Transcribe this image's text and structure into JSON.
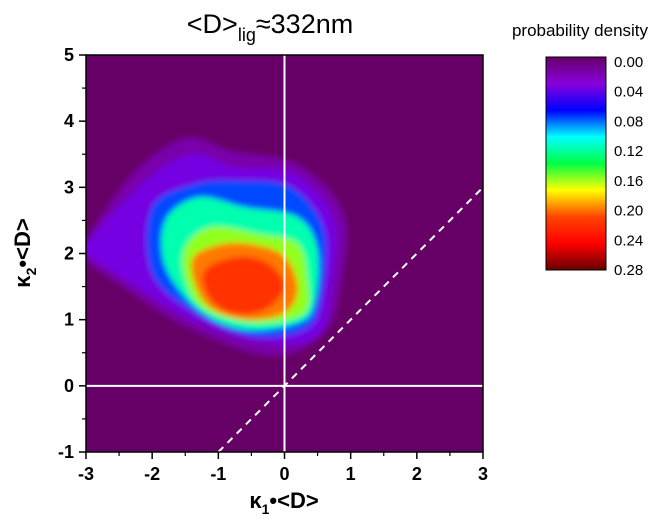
{
  "chart_data": {
    "type": "heatmap",
    "title": {
      "main": "<D>",
      "sub": "lig",
      "rest": "≈332nm"
    },
    "xlabel": {
      "main": "κ",
      "sub": "1",
      "rest": "•<D>"
    },
    "ylabel": {
      "main": "κ",
      "sub": "2",
      "rest": "•<D>"
    },
    "xlim": [
      -3,
      3
    ],
    "ylim": [
      -1,
      5
    ],
    "xticks": [
      "-3",
      "-2",
      "-1",
      "0",
      "1",
      "2",
      "3"
    ],
    "yticks": [
      "-1",
      "0",
      "1",
      "2",
      "3",
      "4",
      "5"
    ],
    "colorbar": {
      "title": "probability density",
      "range": [
        0.0,
        0.28
      ],
      "ticks": [
        "0.00",
        "0.04",
        "0.08",
        "0.12",
        "0.16",
        "0.20",
        "0.24",
        "0.28"
      ],
      "colors": [
        "#660066",
        "#8800dd",
        "#0000ff",
        "#00ffff",
        "#00ff44",
        "#ffff00",
        "#ff4400",
        "#ff0000",
        "#660000"
      ]
    },
    "reference_lines": [
      {
        "type": "vertical",
        "x": 0,
        "style": "solid",
        "color": "#ffffff"
      },
      {
        "type": "horizontal",
        "y": 0,
        "style": "solid",
        "color": "#ffffff"
      },
      {
        "type": "diagonal",
        "from": [
          -1,
          -1
        ],
        "to": [
          3,
          3
        ],
        "style": "dashed",
        "color": "#ffffff"
      }
    ],
    "density_contours": [
      {
        "level": 0.02,
        "points": [
          [
            -3.0,
            2.2
          ],
          [
            -2.3,
            3.2
          ],
          [
            -1.5,
            3.75
          ],
          [
            -0.8,
            3.55
          ],
          [
            0.2,
            3.35
          ],
          [
            0.9,
            2.6
          ],
          [
            0.85,
            1.5
          ],
          [
            0.6,
            0.8
          ],
          [
            -0.2,
            0.45
          ],
          [
            -1.5,
            0.9
          ],
          [
            -2.6,
            1.6
          ],
          [
            -3.0,
            1.9
          ]
        ]
      },
      {
        "level": 0.04,
        "points": [
          [
            -3.0,
            2.15
          ],
          [
            -2.1,
            3.1
          ],
          [
            -1.4,
            3.5
          ],
          [
            -0.75,
            3.3
          ],
          [
            0.15,
            3.2
          ],
          [
            0.75,
            2.5
          ],
          [
            0.7,
            1.5
          ],
          [
            0.5,
            0.75
          ],
          [
            -0.3,
            0.65
          ],
          [
            -1.4,
            1.0
          ],
          [
            -2.4,
            1.6
          ],
          [
            -3.0,
            2.0
          ]
        ]
      },
      {
        "level": 0.08,
        "points": [
          [
            -2.0,
            2.7
          ],
          [
            -1.35,
            3.05
          ],
          [
            -0.7,
            3.1
          ],
          [
            0.1,
            3.0
          ],
          [
            0.6,
            2.35
          ],
          [
            0.55,
            1.3
          ],
          [
            0.3,
            0.85
          ],
          [
            -0.5,
            0.75
          ],
          [
            -1.35,
            1.1
          ],
          [
            -2.0,
            1.7
          ]
        ]
      },
      {
        "level": 0.12,
        "points": [
          [
            -1.8,
            2.5
          ],
          [
            -1.3,
            2.85
          ],
          [
            -0.6,
            2.7
          ],
          [
            0.2,
            2.55
          ],
          [
            0.5,
            2.05
          ],
          [
            0.45,
            1.25
          ],
          [
            0.2,
            0.95
          ],
          [
            -0.6,
            0.85
          ],
          [
            -1.3,
            1.15
          ],
          [
            -1.8,
            1.8
          ]
        ]
      },
      {
        "level": 0.16,
        "points": [
          [
            -1.5,
            2.1
          ],
          [
            -1.1,
            2.4
          ],
          [
            -0.4,
            2.3
          ],
          [
            0.2,
            2.15
          ],
          [
            0.35,
            1.6
          ],
          [
            0.3,
            1.1
          ],
          [
            -0.4,
            0.95
          ],
          [
            -1.2,
            1.15
          ],
          [
            -1.5,
            1.6
          ]
        ]
      },
      {
        "level": 0.2,
        "points": [
          [
            -1.4,
            1.9
          ],
          [
            -0.9,
            2.15
          ],
          [
            -0.3,
            2.1
          ],
          [
            0.05,
            1.9
          ],
          [
            0.2,
            1.45
          ],
          [
            0.0,
            1.1
          ],
          [
            -0.6,
            1.0
          ],
          [
            -1.2,
            1.25
          ]
        ]
      },
      {
        "level": 0.22,
        "points": [
          [
            -1.2,
            1.75
          ],
          [
            -0.7,
            1.95
          ],
          [
            -0.25,
            1.85
          ],
          [
            0.0,
            1.5
          ],
          [
            -0.3,
            1.15
          ],
          [
            -0.8,
            1.1
          ],
          [
            -1.15,
            1.35
          ]
        ]
      }
    ]
  }
}
